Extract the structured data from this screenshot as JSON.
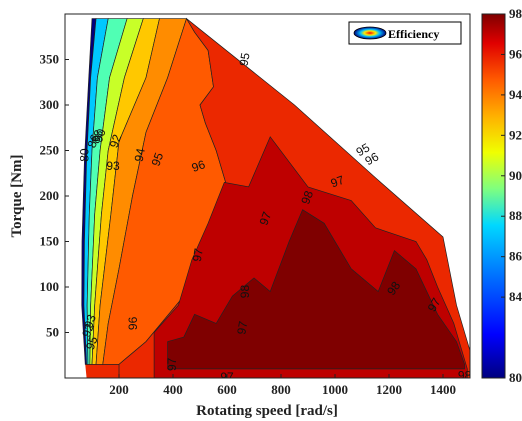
{
  "chart_data": {
    "type": "contour",
    "xlabel": "Rotating speed [rad/s]",
    "ylabel": "Torque [Nm]",
    "xlim": [
      0,
      1500
    ],
    "ylim": [
      0,
      400
    ],
    "xticks": [
      200,
      400,
      600,
      800,
      1000,
      1200,
      1400
    ],
    "yticks": [
      50,
      100,
      150,
      200,
      250,
      300,
      350
    ],
    "legend": {
      "label": "Efficiency",
      "placement": "top-right"
    },
    "colorbar": {
      "range": [
        80,
        98
      ],
      "ticks": [
        80,
        84,
        86,
        88,
        90,
        92,
        94,
        96,
        98
      ]
    },
    "region_boundary": [
      [
        75,
        15
      ],
      [
        62,
        80
      ],
      [
        63,
        150
      ],
      [
        72,
        240
      ],
      [
        88,
        330
      ],
      [
        100,
        395
      ],
      [
        450,
        395
      ],
      [
        850,
        300
      ],
      [
        1150,
        220
      ],
      [
        1400,
        155
      ],
      [
        1450,
        80
      ],
      [
        1500,
        30
      ],
      [
        1500,
        0
      ],
      [
        80,
        0
      ]
    ],
    "level_fills": [
      {
        "level": 80,
        "polygon": [
          [
            75,
            15
          ],
          [
            62,
            80
          ],
          [
            63,
            150
          ],
          [
            72,
            240
          ],
          [
            88,
            330
          ],
          [
            100,
            395
          ],
          [
            115,
            395
          ],
          [
            95,
            330
          ],
          [
            80,
            240
          ],
          [
            72,
            150
          ],
          [
            70,
            80
          ],
          [
            80,
            15
          ]
        ]
      },
      {
        "level": 86,
        "polygon": [
          [
            80,
            15
          ],
          [
            70,
            80
          ],
          [
            72,
            150
          ],
          [
            80,
            240
          ],
          [
            95,
            330
          ],
          [
            115,
            395
          ],
          [
            160,
            395
          ],
          [
            120,
            330
          ],
          [
            100,
            250
          ],
          [
            90,
            180
          ],
          [
            82,
            80
          ],
          [
            85,
            15
          ]
        ]
      },
      {
        "level": 88,
        "polygon": [
          [
            85,
            15
          ],
          [
            82,
            80
          ],
          [
            90,
            180
          ],
          [
            100,
            250
          ],
          [
            120,
            330
          ],
          [
            160,
            395
          ],
          [
            230,
            395
          ],
          [
            165,
            330
          ],
          [
            130,
            250
          ],
          [
            110,
            180
          ],
          [
            95,
            80
          ],
          [
            92,
            15
          ]
        ]
      },
      {
        "level": 90,
        "polygon": [
          [
            92,
            15
          ],
          [
            95,
            80
          ],
          [
            110,
            180
          ],
          [
            130,
            250
          ],
          [
            165,
            330
          ],
          [
            230,
            395
          ],
          [
            290,
            395
          ],
          [
            220,
            330
          ],
          [
            160,
            250
          ],
          [
            135,
            180
          ],
          [
            110,
            80
          ],
          [
            100,
            15
          ]
        ]
      },
      {
        "level": 92,
        "polygon": [
          [
            100,
            15
          ],
          [
            110,
            80
          ],
          [
            135,
            180
          ],
          [
            160,
            250
          ],
          [
            220,
            330
          ],
          [
            290,
            395
          ],
          [
            350,
            395
          ],
          [
            300,
            330
          ],
          [
            200,
            260
          ],
          [
            170,
            180
          ],
          [
            130,
            80
          ],
          [
            115,
            15
          ]
        ]
      },
      {
        "level": 94,
        "polygon": [
          [
            115,
            15
          ],
          [
            130,
            80
          ],
          [
            170,
            180
          ],
          [
            200,
            260
          ],
          [
            300,
            330
          ],
          [
            350,
            395
          ],
          [
            450,
            395
          ],
          [
            380,
            330
          ],
          [
            300,
            270
          ],
          [
            250,
            200
          ],
          [
            200,
            120
          ],
          [
            160,
            60
          ],
          [
            140,
            15
          ]
        ]
      },
      {
        "level": 95,
        "polygon": [
          [
            140,
            15
          ],
          [
            160,
            60
          ],
          [
            200,
            120
          ],
          [
            250,
            200
          ],
          [
            300,
            270
          ],
          [
            380,
            330
          ],
          [
            450,
            395
          ],
          [
            480,
            380
          ],
          [
            530,
            360
          ],
          [
            550,
            320
          ],
          [
            500,
            300
          ],
          [
            520,
            280
          ],
          [
            560,
            250
          ],
          [
            600,
            210
          ],
          [
            560,
            140
          ],
          [
            440,
            90
          ],
          [
            300,
            40
          ],
          [
            200,
            15
          ]
        ]
      },
      {
        "level": 96,
        "polygon": [
          [
            200,
            15
          ],
          [
            300,
            40
          ],
          [
            440,
            90
          ],
          [
            560,
            140
          ],
          [
            600,
            210
          ],
          [
            560,
            250
          ],
          [
            520,
            280
          ],
          [
            500,
            300
          ],
          [
            550,
            320
          ],
          [
            530,
            360
          ],
          [
            480,
            380
          ],
          [
            450,
            395
          ],
          [
            850,
            300
          ],
          [
            1150,
            220
          ],
          [
            1400,
            155
          ],
          [
            1450,
            80
          ],
          [
            1500,
            30
          ],
          [
            1500,
            0
          ],
          [
            200,
            0
          ]
        ]
      },
      {
        "level": 97,
        "polygon": [
          [
            330,
            0
          ],
          [
            330,
            50
          ],
          [
            420,
            80
          ],
          [
            470,
            130
          ],
          [
            530,
            170
          ],
          [
            590,
            215
          ],
          [
            680,
            210
          ],
          [
            760,
            265
          ],
          [
            900,
            210
          ],
          [
            1060,
            195
          ],
          [
            1150,
            165
          ],
          [
            1300,
            150
          ],
          [
            1340,
            130
          ],
          [
            1380,
            100
          ],
          [
            1440,
            60
          ],
          [
            1490,
            10
          ],
          [
            1490,
            0
          ]
        ]
      },
      {
        "level": 98,
        "polygon": [
          [
            380,
            10
          ],
          [
            380,
            40
          ],
          [
            440,
            45
          ],
          [
            480,
            70
          ],
          [
            560,
            60
          ],
          [
            620,
            90
          ],
          [
            700,
            110
          ],
          [
            760,
            95
          ],
          [
            830,
            150
          ],
          [
            880,
            185
          ],
          [
            960,
            170
          ],
          [
            1060,
            120
          ],
          [
            1160,
            95
          ],
          [
            1220,
            140
          ],
          [
            1300,
            120
          ],
          [
            1380,
            70
          ],
          [
            1450,
            40
          ],
          [
            1480,
            15
          ],
          [
            1480,
            10
          ]
        ]
      }
    ],
    "contour_labels": [
      {
        "text": "80",
        "x": 75,
        "y": 245,
        "rotate": -90
      },
      {
        "text": "86",
        "x": 108,
        "y": 260,
        "rotate": -70
      },
      {
        "text": "88",
        "x": 122,
        "y": 265,
        "rotate": -70
      },
      {
        "text": "90",
        "x": 132,
        "y": 266,
        "rotate": -70
      },
      {
        "text": "92",
        "x": 190,
        "y": 260,
        "rotate": -70
      },
      {
        "text": "93",
        "x": 178,
        "y": 232,
        "rotate": 0
      },
      {
        "text": "94",
        "x": 280,
        "y": 245,
        "rotate": -80
      },
      {
        "text": "95",
        "x": 345,
        "y": 240,
        "rotate": -70
      },
      {
        "text": "95",
        "x": 668,
        "y": 350,
        "rotate": -80
      },
      {
        "text": "96",
        "x": 495,
        "y": 232,
        "rotate": -20
      },
      {
        "text": "95",
        "x": 1105,
        "y": 250,
        "rotate": -30
      },
      {
        "text": "96",
        "x": 1138,
        "y": 240,
        "rotate": -30
      },
      {
        "text": "97",
        "x": 1010,
        "y": 215,
        "rotate": -20
      },
      {
        "text": "97",
        "x": 745,
        "y": 175,
        "rotate": -70
      },
      {
        "text": "97",
        "x": 495,
        "y": 135,
        "rotate": -80
      },
      {
        "text": "97",
        "x": 660,
        "y": 55,
        "rotate": -80
      },
      {
        "text": "97",
        "x": 1370,
        "y": 80,
        "rotate": -60
      },
      {
        "text": "97",
        "x": 600,
        "y": 0,
        "rotate": 0
      },
      {
        "text": "98",
        "x": 670,
        "y": 95,
        "rotate": -90
      },
      {
        "text": "98",
        "x": 900,
        "y": 198,
        "rotate": -70
      },
      {
        "text": "98",
        "x": 1220,
        "y": 98,
        "rotate": -55
      },
      {
        "text": "98",
        "x": 1480,
        "y": 2,
        "rotate": 0
      },
      {
        "text": "96",
        "x": 255,
        "y": 60,
        "rotate": -90
      },
      {
        "text": "97",
        "x": 400,
        "y": 15,
        "rotate": -90
      },
      {
        "text": "95",
        "x": 102,
        "y": 38,
        "rotate": -70
      },
      {
        "text": "92",
        "x": 88,
        "y": 52,
        "rotate": -70
      },
      {
        "text": "93",
        "x": 96,
        "y": 62,
        "rotate": -70
      }
    ]
  }
}
